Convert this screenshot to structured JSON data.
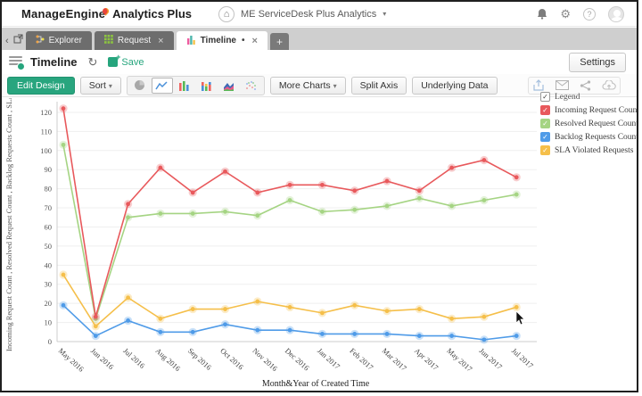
{
  "header": {
    "brand": "ManageEngine",
    "product": "Analytics Plus",
    "workspace": "ME ServiceDesk Plus Analytics"
  },
  "icons": {
    "home": "⌂",
    "gear": "⚙",
    "help": "?",
    "dropdown_caret": "▾",
    "close": "×",
    "modified_dot": "•",
    "check": "✓",
    "refresh": "↻",
    "chevron_left": "‹",
    "add_tab": "+"
  },
  "tabs": [
    {
      "label": "Explorer",
      "active": false,
      "closable": false
    },
    {
      "label": "Request",
      "active": false,
      "closable": true
    },
    {
      "label": "Timeline",
      "active": true,
      "closable": true,
      "modified": true
    },
    {
      "label": "+",
      "active": false
    }
  ],
  "toolbar": {
    "title": "Timeline",
    "save_label": "Save",
    "settings_label": "Settings"
  },
  "action_bar": {
    "edit_design_label": "Edit Design",
    "sort_label": "Sort",
    "more_charts_label": "More Charts",
    "split_axis_label": "Split Axis",
    "underlying_data_label": "Underlying Data"
  },
  "legend": {
    "label": "Legend",
    "checked": true,
    "items": [
      {
        "label": "Incoming Request Count",
        "color": "#e8595c",
        "checked": true
      },
      {
        "label": "Resolved Request Count",
        "color": "#a5d483",
        "checked": true
      },
      {
        "label": "Backlog Requests Count",
        "color": "#4f9be8",
        "checked": true
      },
      {
        "label": "SLA Violated Requests",
        "color": "#f5bf4a",
        "checked": true
      }
    ]
  },
  "chart_data": {
    "type": "line",
    "title": "Timeline",
    "x": [
      "May 2016",
      "Jun 2016",
      "Jul 2016",
      "Aug 2016",
      "Sep 2016",
      "Oct 2016",
      "Nov 2016",
      "Dec 2016",
      "Jan 2017",
      "Feb 2017",
      "Mar 2017",
      "Apr 2017",
      "May 2017",
      "Jun 2017",
      "Jul 2017"
    ],
    "series": [
      {
        "name": "Incoming Request Count",
        "color": "#e8595c",
        "values": [
          122,
          13,
          72,
          91,
          78,
          89,
          78,
          82,
          82,
          79,
          84,
          79,
          91,
          95,
          86
        ]
      },
      {
        "name": "Resolved Request Count",
        "color": "#a5d483",
        "values": [
          103,
          12,
          65,
          67,
          67,
          68,
          66,
          74,
          68,
          69,
          71,
          75,
          71,
          74,
          77
        ]
      },
      {
        "name": "Backlog Requests Count",
        "color": "#4f9be8",
        "values": [
          19,
          3,
          11,
          5,
          5,
          9,
          6,
          6,
          4,
          4,
          4,
          3,
          3,
          1,
          3
        ]
      },
      {
        "name": "SLA Violated Requests",
        "color": "#f5bf4a",
        "values": [
          35,
          8,
          23,
          12,
          17,
          17,
          21,
          18,
          15,
          19,
          16,
          17,
          12,
          13,
          18
        ]
      }
    ],
    "xlabel": "Month&Year of Created Time",
    "ylabel": "Incoming Request Count , Resolved Request Count , Backlog Requests Count , SLA Violated Requests",
    "ylim": [
      0,
      130
    ],
    "yticks": [
      0,
      10,
      20,
      30,
      40,
      50,
      60,
      70,
      80,
      90,
      100,
      110,
      120
    ],
    "grid": true,
    "legend_position": "right"
  }
}
